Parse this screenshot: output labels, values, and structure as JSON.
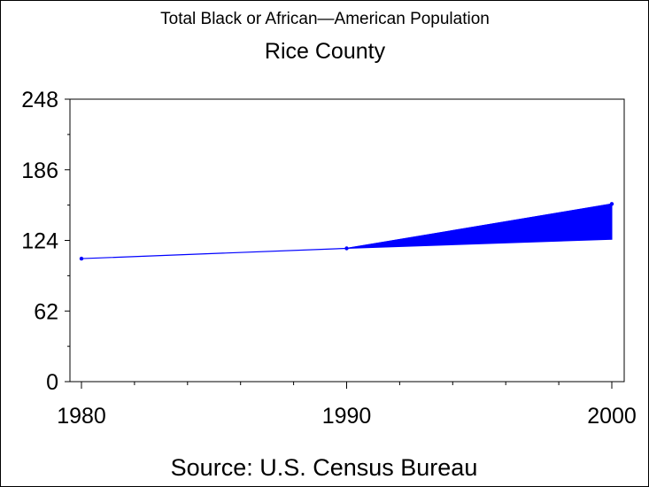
{
  "chart_data": {
    "type": "line",
    "title": "Total Black or African—American Population",
    "subtitle": "Rice County",
    "footnote": "Source: U.S. Census Bureau",
    "xlabel": "",
    "ylabel": "",
    "x_ticks": [
      "1980",
      "1990",
      "2000"
    ],
    "y_ticks": [
      "0",
      "62",
      "124",
      "186",
      "248"
    ],
    "xlim": [
      1980,
      2000
    ],
    "ylim": [
      0,
      248
    ],
    "grid": false,
    "series": [
      {
        "color": "#0000ff",
        "points": [
          {
            "x": 1980,
            "y": 108
          },
          {
            "x": 1990,
            "y": 117
          },
          {
            "x": 2000,
            "y": 156
          }
        ]
      }
    ],
    "band": {
      "color": "#0000ff",
      "from_x": 1990,
      "to_x": 2000,
      "lower": [
        117,
        125
      ],
      "upper": [
        117,
        156
      ]
    }
  }
}
